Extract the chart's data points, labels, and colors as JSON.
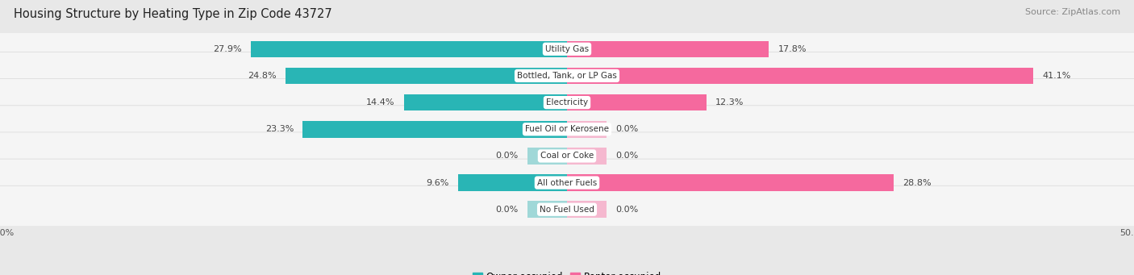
{
  "title": "Housing Structure by Heating Type in Zip Code 43727",
  "source": "Source: ZipAtlas.com",
  "categories": [
    "Utility Gas",
    "Bottled, Tank, or LP Gas",
    "Electricity",
    "Fuel Oil or Kerosene",
    "Coal or Coke",
    "All other Fuels",
    "No Fuel Used"
  ],
  "owner_values": [
    27.9,
    24.8,
    14.4,
    23.3,
    0.0,
    9.6,
    0.0
  ],
  "renter_values": [
    17.8,
    41.1,
    12.3,
    0.0,
    0.0,
    28.8,
    0.0
  ],
  "owner_color": "#29b5b5",
  "renter_color": "#f5699e",
  "owner_color_zero": "#a0d8d8",
  "renter_color_zero": "#f5b8cf",
  "axis_max": 50.0,
  "background_color": "#e8e8e8",
  "bar_bg_color": "#f5f5f5",
  "bar_bg_border": "#d8d8d8",
  "title_fontsize": 10.5,
  "source_fontsize": 8,
  "value_fontsize": 8,
  "cat_fontsize": 7.5,
  "tick_fontsize": 8
}
